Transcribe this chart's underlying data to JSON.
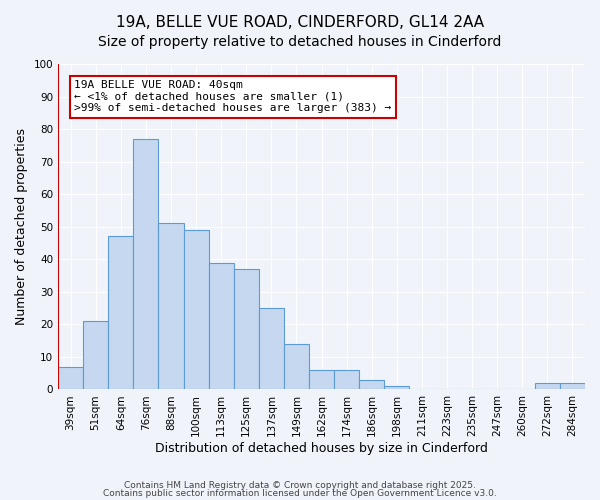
{
  "title_line1": "19A, BELLE VUE ROAD, CINDERFORD, GL14 2AA",
  "title_line2": "Size of property relative to detached houses in Cinderford",
  "xlabel": "Distribution of detached houses by size in Cinderford",
  "ylabel": "Number of detached properties",
  "categories": [
    "39sqm",
    "51sqm",
    "64sqm",
    "76sqm",
    "88sqm",
    "100sqm",
    "113sqm",
    "125sqm",
    "137sqm",
    "149sqm",
    "162sqm",
    "174sqm",
    "186sqm",
    "198sqm",
    "211sqm",
    "223sqm",
    "235sqm",
    "247sqm",
    "260sqm",
    "272sqm",
    "284sqm"
  ],
  "values": [
    7,
    21,
    47,
    77,
    51,
    49,
    39,
    37,
    25,
    14,
    6,
    6,
    3,
    1,
    0,
    0,
    0,
    0,
    0,
    2,
    2
  ],
  "bar_color": "#c5d8f0",
  "bar_edge_color": "#5b9bd5",
  "annotation_box_color": "#ffffff",
  "annotation_border_color": "#cc0000",
  "annotation_text_line1": "19A BELLE VUE ROAD: 40sqm",
  "annotation_text_line2": "← <1% of detached houses are smaller (1)",
  "annotation_text_line3": ">99% of semi-detached houses are larger (383) →",
  "vertical_line_color": "#cc0000",
  "vertical_line_x": 0,
  "ylim": [
    0,
    100
  ],
  "yticks": [
    0,
    10,
    20,
    30,
    40,
    50,
    60,
    70,
    80,
    90,
    100
  ],
  "footer_line1": "Contains HM Land Registry data © Crown copyright and database right 2025.",
  "footer_line2": "Contains public sector information licensed under the Open Government Licence v3.0.",
  "background_color": "#f0f4fa",
  "title_fontsize": 11,
  "label_fontsize": 9,
  "tick_fontsize": 7.5,
  "annotation_fontsize": 8
}
